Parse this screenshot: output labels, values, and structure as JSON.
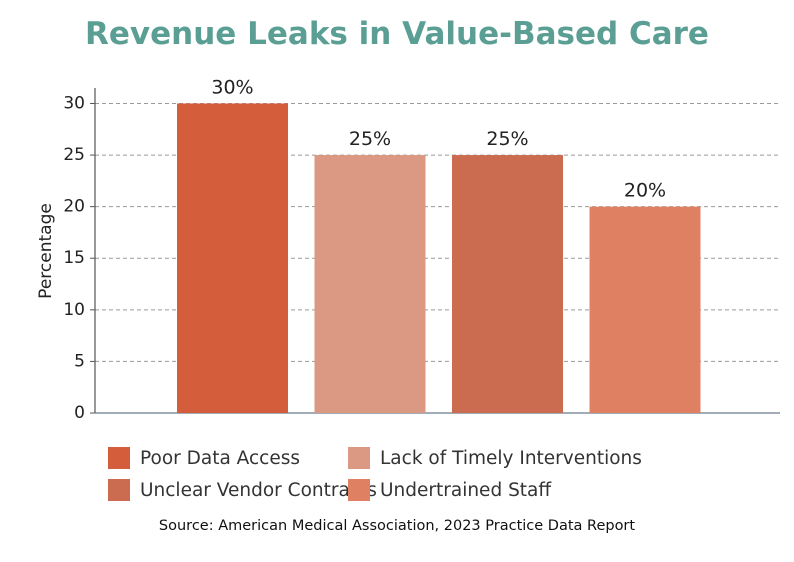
{
  "chart_data": {
    "type": "bar",
    "title": "Revenue Leaks in Value-Based Care",
    "ylabel": "Percentage",
    "xlabel": "",
    "categories": [
      "Poor Data Access",
      "Lack of Timely Interventions",
      "Unclear Vendor Contracts",
      "Undertrained Staff"
    ],
    "values": [
      30,
      25,
      25,
      20
    ],
    "data_labels": [
      "30%",
      "25%",
      "25%",
      "20%"
    ],
    "colors": [
      "#d45e3c",
      "#db9882",
      "#cb6b50",
      "#e08063"
    ],
    "ylim": [
      0,
      31.5
    ],
    "yticks": [
      0,
      5,
      10,
      15,
      20,
      25,
      30
    ],
    "grid": "y-dashed",
    "legend_placement": "bottom",
    "title_color": "#5a9e94"
  },
  "source": "Source: American Medical Association, 2023 Practice Data Report"
}
